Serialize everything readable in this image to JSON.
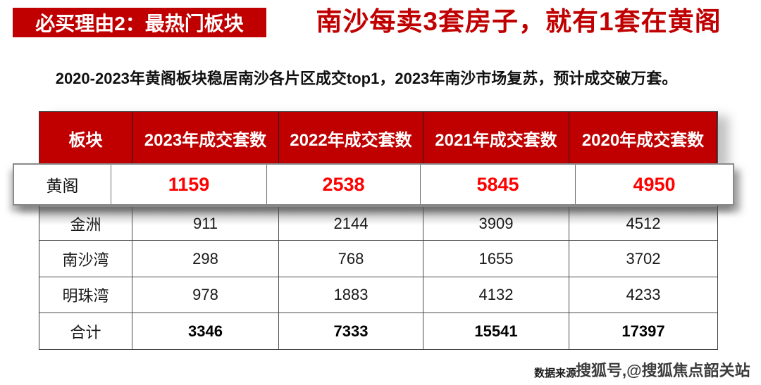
{
  "banner": {
    "label": "必买理由2：最热门板块"
  },
  "title": "南沙每卖3套房子，就有1套在黄阁",
  "subtitle": "2020-2023年黄阁板块稳居南沙各片区成交top1，2023年南沙市场复苏，预计成交破万套。",
  "table": {
    "headers": [
      "板块",
      "2023年成交套数",
      "2022年成交套数",
      "2021年成交套数",
      "2020年成交套数"
    ],
    "highlight_row": {
      "name": "黄阁",
      "values": [
        "1159",
        "2538",
        "5845",
        "4950"
      ]
    },
    "rows": [
      {
        "name": "金洲",
        "values": [
          "911",
          "2144",
          "3909",
          "4512"
        ]
      },
      {
        "name": "南沙湾",
        "values": [
          "298",
          "768",
          "1655",
          "3702"
        ]
      },
      {
        "name": "明珠湾",
        "values": [
          "978",
          "1883",
          "4132",
          "4233"
        ]
      },
      {
        "name": "合计",
        "values": [
          "3346",
          "7333",
          "15541",
          "17397"
        ]
      }
    ]
  },
  "footer": {
    "source_label": "数据来源",
    "watermark": "搜狐号,@搜狐焦点韶关站"
  },
  "colors": {
    "brand_red": "#C00000",
    "highlight_number_red": "#FF0000",
    "header_text": "#FFFFFF",
    "body_text": "#1A1A1A",
    "card_border": "#8A8A8A"
  }
}
